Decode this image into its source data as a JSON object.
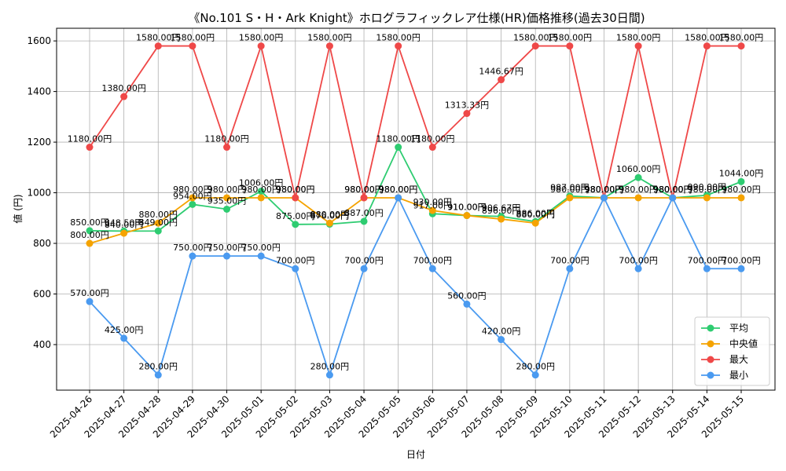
{
  "chart_data": {
    "type": "line",
    "title": "《No.101 S・H・Ark Knight》ホログラフィックレア仕様(HR)価格推移(過去30日間)",
    "xlabel": "日付",
    "ylabel": "値 (円)",
    "ylim": [
      220,
      1650
    ],
    "yticks": [
      400,
      600,
      800,
      1000,
      1200,
      1400,
      1600
    ],
    "grid": true,
    "legend_position": "lower-right",
    "categories": [
      "2025-04-26",
      "2025-04-27",
      "2025-04-28",
      "2025-04-29",
      "2025-04-30",
      "2025-05-01",
      "2025-05-02",
      "2025-05-03",
      "2025-05-04",
      "2025-05-05",
      "2025-05-06",
      "2025-05-07",
      "2025-05-08",
      "2025-05-09",
      "2025-05-10",
      "2025-05-11",
      "2025-05-12",
      "2025-05-13",
      "2025-05-14",
      "2025-05-15"
    ],
    "series": [
      {
        "name": "平均",
        "color": "#2ecc71",
        "values": [
          850.0,
          848.5,
          849.0,
          954.0,
          935.0,
          1006.0,
          875.0,
          876.0,
          887.0,
          1180.0,
          917.0,
          910.0,
          906.67,
          886.0,
          987.0,
          980.0,
          1060.0,
          980.0,
          990.0,
          1044.0
        ]
      },
      {
        "name": "中央値",
        "color": "#f5a300",
        "values": [
          800.0,
          840.0,
          880.0,
          980.0,
          980.0,
          980.0,
          980.0,
          880.0,
          980.0,
          980.0,
          930.0,
          910.0,
          896.0,
          880.0,
          980.0,
          980.0,
          980.0,
          980.0,
          980.0,
          980.0
        ]
      },
      {
        "name": "最大",
        "color": "#ef4848",
        "values": [
          1180.0,
          1380.0,
          1580.0,
          1580.0,
          1180.0,
          1580.0,
          980.0,
          1580.0,
          980.0,
          1580.0,
          1180.0,
          1313.33,
          1446.67,
          1580.0,
          1580.0,
          980.0,
          1580.0,
          980.0,
          1580.0,
          1580.0
        ]
      },
      {
        "name": "最小",
        "color": "#4a9af0",
        "values": [
          570.0,
          425.0,
          280.0,
          750.0,
          750.0,
          750.0,
          700.0,
          280.0,
          700.0,
          980.0,
          700.0,
          560.0,
          420.0,
          280.0,
          700.0,
          980.0,
          700.0,
          980.0,
          700.0,
          700.0
        ]
      }
    ]
  }
}
